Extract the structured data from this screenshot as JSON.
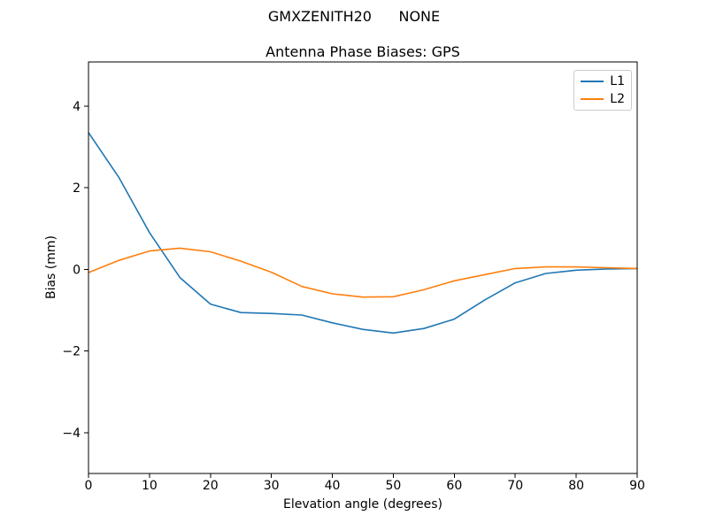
{
  "figure": {
    "suptitle": "GMXZENITH20      NONE",
    "axes_title": "Antenna Phase Biases: GPS",
    "xlabel": "Elevation angle (degrees)",
    "ylabel": "Bias (mm)"
  },
  "legend": {
    "items": [
      {
        "label": "L1",
        "color": "#1f77b4"
      },
      {
        "label": "L2",
        "color": "#ff7f0e"
      }
    ]
  },
  "chart_data": {
    "type": "line",
    "suptitle": "GMXZENITH20      NONE",
    "title": "Antenna Phase Biases: GPS",
    "xlabel": "Elevation angle (degrees)",
    "ylabel": "Bias (mm)",
    "x": [
      0,
      5,
      10,
      15,
      20,
      25,
      30,
      35,
      40,
      45,
      50,
      55,
      60,
      65,
      70,
      75,
      80,
      85,
      90
    ],
    "series": [
      {
        "name": "L1",
        "color": "#1f77b4",
        "values": [
          3.35,
          2.25,
          0.9,
          -0.2,
          -0.85,
          -1.06,
          -1.08,
          -1.12,
          -1.31,
          -1.47,
          -1.56,
          -1.45,
          -1.22,
          -0.75,
          -0.33,
          -0.1,
          -0.02,
          0.01,
          0.02
        ]
      },
      {
        "name": "L2",
        "color": "#ff7f0e",
        "values": [
          -0.08,
          0.22,
          0.45,
          0.52,
          0.43,
          0.2,
          -0.07,
          -0.42,
          -0.6,
          -0.68,
          -0.67,
          -0.5,
          -0.28,
          -0.13,
          0.02,
          0.06,
          0.06,
          0.04,
          0.02
        ]
      }
    ],
    "xlim": [
      0,
      90
    ],
    "ylim": [
      -5.0,
      5.08
    ],
    "xticks": [
      0,
      10,
      20,
      30,
      40,
      50,
      60,
      70,
      80,
      90
    ],
    "yticks": [
      -4,
      -2,
      0,
      2,
      4
    ],
    "grid": false,
    "legend_position": "upper right"
  }
}
